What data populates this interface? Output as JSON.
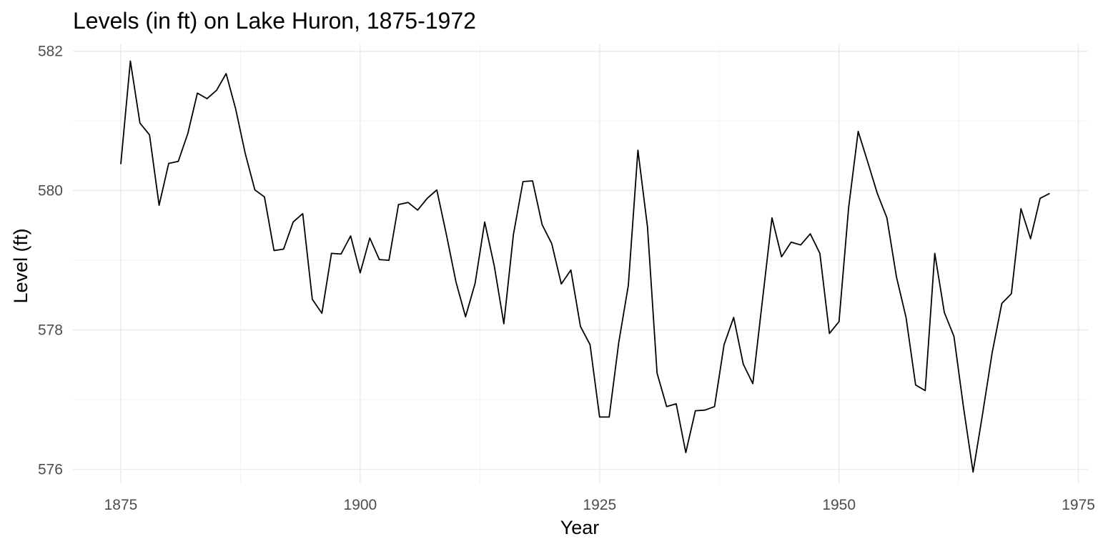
{
  "chart_data": {
    "type": "line",
    "title": "Levels (in ft) on Lake Huron, 1875-1972",
    "xlabel": "Year",
    "ylabel": "Level (ft)",
    "xlim": [
      1870,
      1976
    ],
    "ylim": [
      575.8,
      582.1
    ],
    "x_ticks": [
      1875,
      1900,
      1925,
      1950,
      1975
    ],
    "x_tick_labels": [
      "1875",
      "1900",
      "1925",
      "1950",
      "1975"
    ],
    "y_ticks": [
      576,
      578,
      580,
      582
    ],
    "y_tick_labels": [
      "576",
      "578",
      "580",
      "582"
    ],
    "grid": true,
    "legend": "none",
    "line_color": "#000000",
    "x": [
      1875,
      1876,
      1877,
      1878,
      1879,
      1880,
      1881,
      1882,
      1883,
      1884,
      1885,
      1886,
      1887,
      1888,
      1889,
      1890,
      1891,
      1892,
      1893,
      1894,
      1895,
      1896,
      1897,
      1898,
      1899,
      1900,
      1901,
      1902,
      1903,
      1904,
      1905,
      1906,
      1907,
      1908,
      1909,
      1910,
      1911,
      1912,
      1913,
      1914,
      1915,
      1916,
      1917,
      1918,
      1919,
      1920,
      1921,
      1922,
      1923,
      1924,
      1925,
      1926,
      1927,
      1928,
      1929,
      1930,
      1931,
      1932,
      1933,
      1934,
      1935,
      1936,
      1937,
      1938,
      1939,
      1940,
      1941,
      1942,
      1943,
      1944,
      1945,
      1946,
      1947,
      1948,
      1949,
      1950,
      1951,
      1952,
      1953,
      1954,
      1955,
      1956,
      1957,
      1958,
      1959,
      1960,
      1961,
      1962,
      1963,
      1964,
      1965,
      1966,
      1967,
      1968,
      1969,
      1970,
      1971,
      1972
    ],
    "values": [
      580.38,
      581.86,
      580.97,
      580.8,
      579.79,
      580.39,
      580.42,
      580.82,
      581.4,
      581.32,
      581.44,
      581.68,
      581.17,
      580.53,
      580.01,
      579.91,
      579.14,
      579.16,
      579.55,
      579.67,
      578.44,
      578.24,
      579.1,
      579.09,
      579.35,
      578.82,
      579.32,
      579.01,
      579.0,
      579.8,
      579.83,
      579.72,
      579.89,
      580.01,
      579.37,
      578.69,
      578.19,
      578.67,
      579.55,
      578.92,
      578.09,
      579.37,
      580.13,
      580.14,
      579.51,
      579.24,
      578.66,
      578.86,
      578.05,
      577.79,
      576.75,
      576.75,
      577.82,
      578.64,
      580.58,
      579.48,
      577.38,
      576.9,
      576.94,
      576.24,
      576.84,
      576.85,
      576.9,
      577.79,
      578.18,
      577.51,
      577.23,
      578.42,
      579.61,
      579.05,
      579.26,
      579.22,
      579.38,
      579.1,
      577.95,
      578.12,
      579.75,
      580.85,
      580.41,
      579.96,
      579.61,
      578.76,
      578.18,
      577.21,
      577.13,
      579.1,
      578.25,
      577.91,
      576.89,
      575.96,
      576.8,
      577.68,
      578.38,
      578.52,
      579.74,
      579.31,
      579.89,
      579.96
    ]
  }
}
